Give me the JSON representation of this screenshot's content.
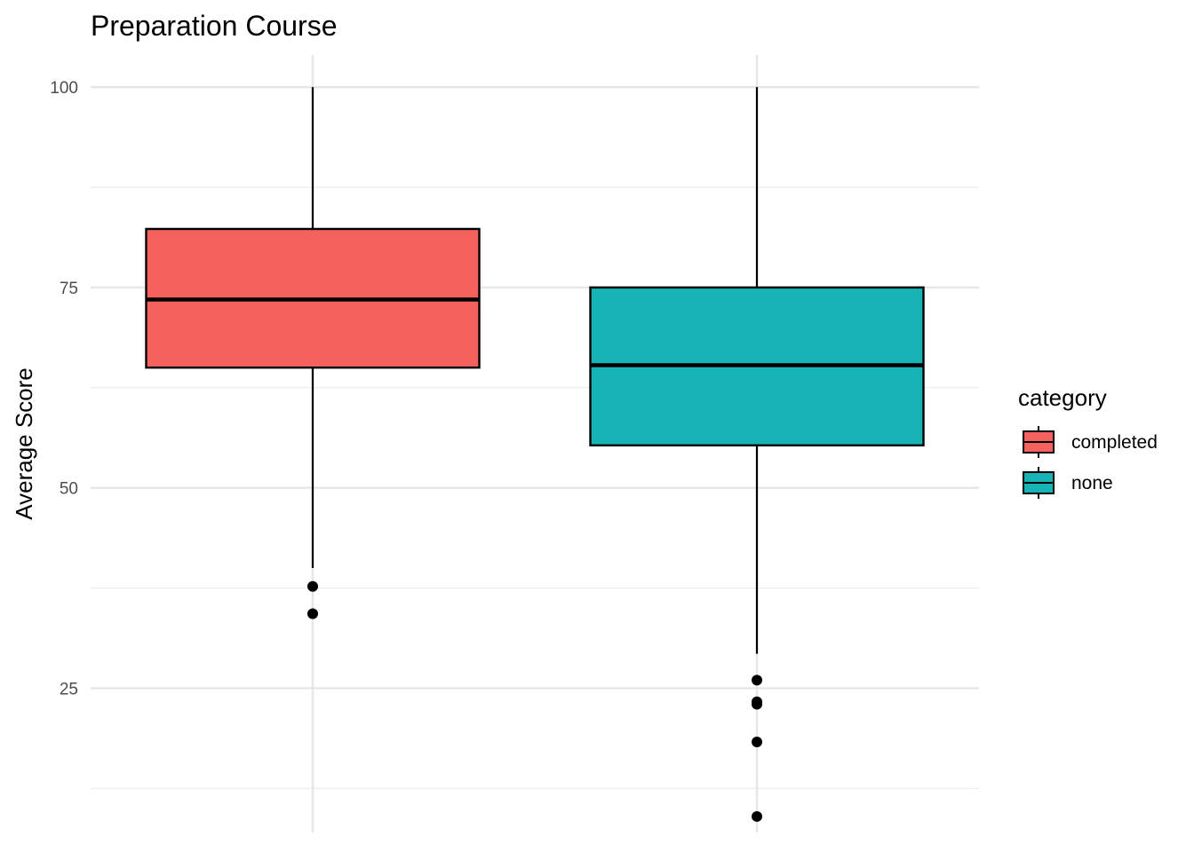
{
  "chart_data": {
    "type": "boxplot",
    "title": "Preparation Course",
    "xlabel": "",
    "ylabel": "Average Score",
    "ylim": [
      7,
      104
    ],
    "y_ticks": [
      25,
      50,
      75,
      100
    ],
    "y_minor_ticks": [
      12.5,
      37.5,
      62.5,
      87.5
    ],
    "grid": true,
    "legend": {
      "title": "category",
      "position": "right"
    },
    "series": [
      {
        "name": "completed",
        "color": "#F8766D",
        "fill": "#F5625E",
        "whisker_low": 40,
        "q1": 65,
        "median": 73.5,
        "q3": 82.3,
        "whisker_high": 100,
        "outliers": [
          37.7,
          34.3
        ]
      },
      {
        "name": "none",
        "color": "#00BFC4",
        "fill": "#18B3B7",
        "whisker_low": 29.3,
        "q1": 55.3,
        "median": 65.3,
        "q3": 75,
        "whisker_high": 100,
        "outliers": [
          26,
          23.3,
          23,
          18.3,
          9
        ]
      }
    ]
  }
}
